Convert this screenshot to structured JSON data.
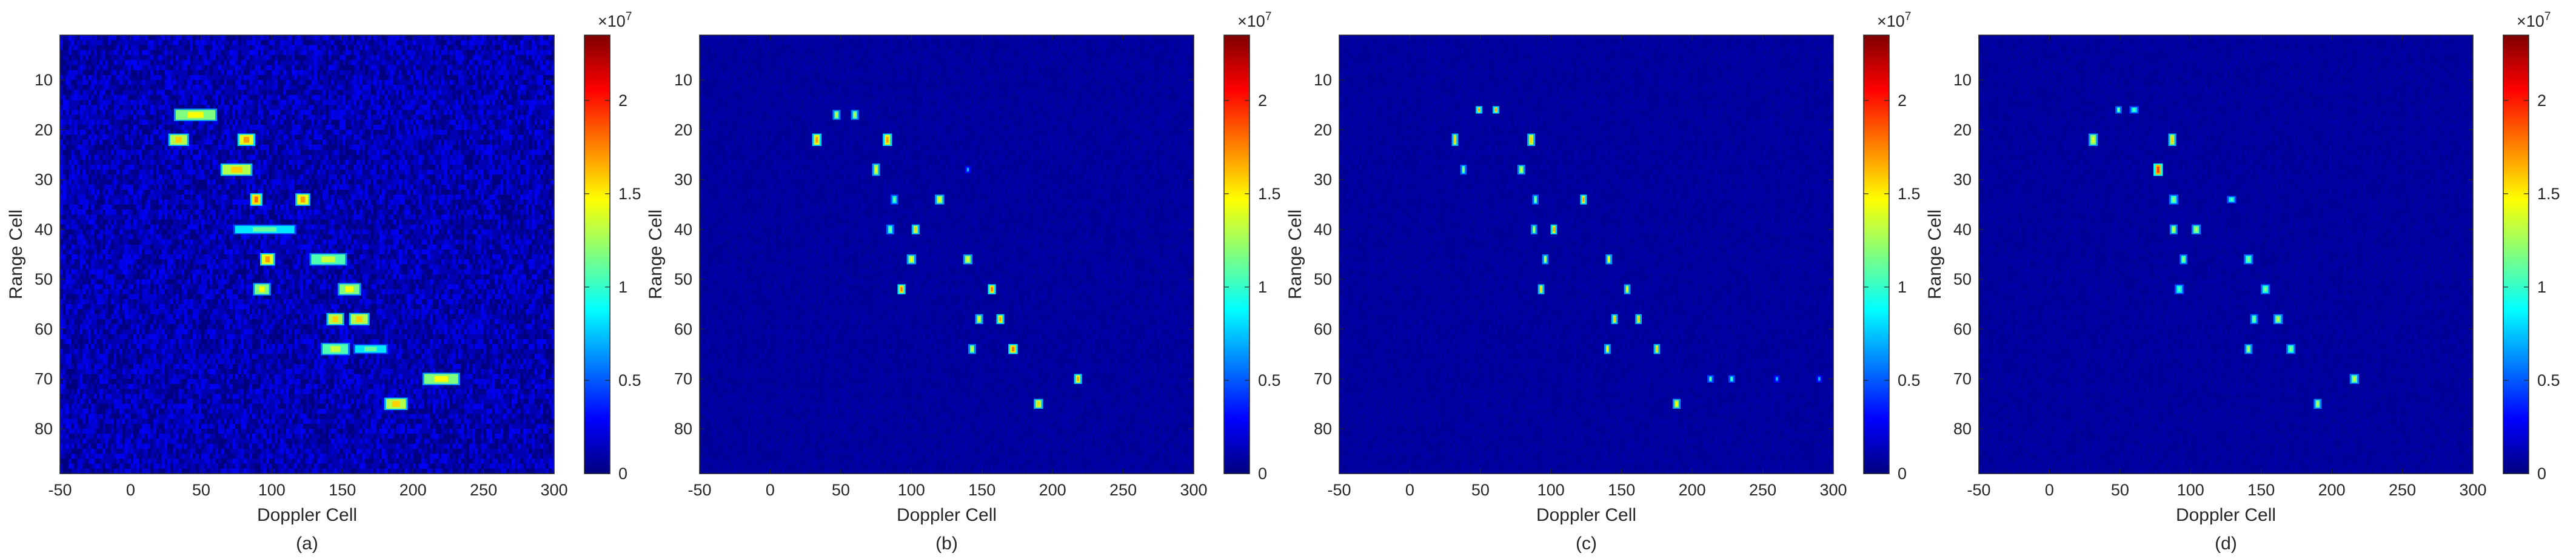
{
  "figure": {
    "colormap": "jet",
    "colors": {
      "background": "#00008F",
      "axis_color": "#262626",
      "jet_stops": [
        "#00007F",
        "#0000FF",
        "#007FFF",
        "#00FFFF",
        "#7FFF7F",
        "#FFFF00",
        "#FF7F00",
        "#FF0000",
        "#7F0000"
      ]
    }
  },
  "chart_data": [
    {
      "type": "heatmap",
      "caption": "(a)",
      "xlabel": "Doppler Cell",
      "ylabel": "Range Cell",
      "xlim": [
        -50,
        300
      ],
      "ylim": [
        89,
        1
      ],
      "y_reversed": true,
      "xticks": [
        -50,
        0,
        50,
        100,
        150,
        200,
        250,
        300
      ],
      "yticks": [
        10,
        20,
        30,
        40,
        50,
        60,
        70,
        80
      ],
      "colorbar": {
        "range": [
          0,
          23500000
        ],
        "ticks": [
          0,
          0.5,
          1,
          1.5,
          2
        ],
        "ticklabels": [
          "0",
          "0.5",
          "1",
          "1.5",
          "2"
        ],
        "multiplier": "×10",
        "exponent": "7"
      },
      "background_level": 0.05,
      "noise": 0.07,
      "blobs": [
        {
          "x": 46,
          "y": 17,
          "w": 28,
          "h": 2,
          "v": 0.5
        },
        {
          "x": 34,
          "y": 22,
          "w": 12,
          "h": 2,
          "v": 0.55
        },
        {
          "x": 82,
          "y": 22,
          "w": 10,
          "h": 2,
          "v": 0.6
        },
        {
          "x": 75,
          "y": 28,
          "w": 20,
          "h": 2,
          "v": 0.55
        },
        {
          "x": 89,
          "y": 34,
          "w": 6,
          "h": 2,
          "v": 0.65
        },
        {
          "x": 122,
          "y": 34,
          "w": 8,
          "h": 2,
          "v": 0.6
        },
        {
          "x": 95,
          "y": 40,
          "w": 42,
          "h": 1.5,
          "v": 0.35
        },
        {
          "x": 97,
          "y": 46,
          "w": 8,
          "h": 2,
          "v": 0.6
        },
        {
          "x": 140,
          "y": 46,
          "w": 24,
          "h": 2,
          "v": 0.45
        },
        {
          "x": 93,
          "y": 52,
          "w": 10,
          "h": 2,
          "v": 0.5
        },
        {
          "x": 155,
          "y": 52,
          "w": 14,
          "h": 2,
          "v": 0.5
        },
        {
          "x": 145,
          "y": 58,
          "w": 10,
          "h": 2,
          "v": 0.55
        },
        {
          "x": 162,
          "y": 58,
          "w": 12,
          "h": 2,
          "v": 0.55
        },
        {
          "x": 145,
          "y": 64,
          "w": 18,
          "h": 2,
          "v": 0.45
        },
        {
          "x": 170,
          "y": 64,
          "w": 22,
          "h": 1.5,
          "v": 0.35
        },
        {
          "x": 220,
          "y": 70,
          "w": 24,
          "h": 2,
          "v": 0.5
        },
        {
          "x": 188,
          "y": 75,
          "w": 14,
          "h": 2,
          "v": 0.55
        }
      ]
    },
    {
      "type": "heatmap",
      "caption": "(b)",
      "xlabel": "Doppler Cell",
      "ylabel": "Range Cell",
      "xlim": [
        -50,
        300
      ],
      "ylim": [
        89,
        1
      ],
      "y_reversed": true,
      "xticks": [
        -50,
        0,
        50,
        100,
        150,
        200,
        250,
        300
      ],
      "yticks": [
        10,
        20,
        30,
        40,
        50,
        60,
        70,
        80
      ],
      "colorbar": {
        "range": [
          0,
          23500000
        ],
        "ticks": [
          0,
          0.5,
          1,
          1.5,
          2
        ],
        "ticklabels": [
          "0",
          "0.5",
          "1",
          "1.5",
          "2"
        ],
        "multiplier": "×10",
        "exponent": "7"
      },
      "background_level": 0.03,
      "noise": 0.012,
      "blobs": [
        {
          "x": 47,
          "y": 17,
          "w": 3,
          "h": 1.5,
          "v": 0.45
        },
        {
          "x": 60,
          "y": 17,
          "w": 3,
          "h": 1.5,
          "v": 0.45
        },
        {
          "x": 33,
          "y": 22,
          "w": 4,
          "h": 2,
          "v": 0.6
        },
        {
          "x": 83,
          "y": 22,
          "w": 4,
          "h": 2,
          "v": 0.6
        },
        {
          "x": 75,
          "y": 28,
          "w": 3,
          "h": 2,
          "v": 0.5
        },
        {
          "x": 140,
          "y": 28,
          "w": 2,
          "h": 1,
          "v": 0.2
        },
        {
          "x": 88,
          "y": 34,
          "w": 3,
          "h": 1.5,
          "v": 0.35
        },
        {
          "x": 120,
          "y": 34,
          "w": 4,
          "h": 1.5,
          "v": 0.5
        },
        {
          "x": 85,
          "y": 40,
          "w": 3,
          "h": 1.5,
          "v": 0.4
        },
        {
          "x": 103,
          "y": 40,
          "w": 3,
          "h": 1.5,
          "v": 0.55
        },
        {
          "x": 100,
          "y": 46,
          "w": 4,
          "h": 1.5,
          "v": 0.5
        },
        {
          "x": 140,
          "y": 46,
          "w": 4,
          "h": 1.5,
          "v": 0.5
        },
        {
          "x": 93,
          "y": 52,
          "w": 3,
          "h": 1.5,
          "v": 0.65
        },
        {
          "x": 157,
          "y": 52,
          "w": 3,
          "h": 1.5,
          "v": 0.65
        },
        {
          "x": 148,
          "y": 58,
          "w": 3,
          "h": 1.5,
          "v": 0.5
        },
        {
          "x": 163,
          "y": 58,
          "w": 3,
          "h": 1.5,
          "v": 0.6
        },
        {
          "x": 143,
          "y": 64,
          "w": 3,
          "h": 1.5,
          "v": 0.45
        },
        {
          "x": 172,
          "y": 64,
          "w": 4,
          "h": 1.5,
          "v": 0.65
        },
        {
          "x": 218,
          "y": 70,
          "w": 3,
          "h": 1.5,
          "v": 0.6
        },
        {
          "x": 190,
          "y": 75,
          "w": 4,
          "h": 1.5,
          "v": 0.55
        }
      ]
    },
    {
      "type": "heatmap",
      "caption": "(c)",
      "xlabel": "Doppler Cell",
      "ylabel": "Range Cell",
      "xlim": [
        -50,
        300
      ],
      "ylim": [
        89,
        1
      ],
      "y_reversed": true,
      "xticks": [
        -50,
        0,
        50,
        100,
        150,
        200,
        250,
        300
      ],
      "yticks": [
        10,
        20,
        30,
        40,
        50,
        60,
        70,
        80
      ],
      "colorbar": {
        "range": [
          0,
          23500000
        ],
        "ticks": [
          0,
          0.5,
          1,
          1.5,
          2
        ],
        "ticklabels": [
          "0",
          "0.5",
          "1",
          "1.5",
          "2"
        ],
        "multiplier": "×10",
        "exponent": "7"
      },
      "background_level": 0.03,
      "noise": 0.01,
      "blobs": [
        {
          "x": 49,
          "y": 16,
          "w": 2,
          "h": 1,
          "v": 0.6
        },
        {
          "x": 61,
          "y": 16,
          "w": 2,
          "h": 1,
          "v": 0.6
        },
        {
          "x": 32,
          "y": 22,
          "w": 2,
          "h": 2,
          "v": 0.55
        },
        {
          "x": 86,
          "y": 22,
          "w": 3,
          "h": 2,
          "v": 0.55
        },
        {
          "x": 38,
          "y": 28,
          "w": 2,
          "h": 1.5,
          "v": 0.4
        },
        {
          "x": 79,
          "y": 28,
          "w": 3,
          "h": 1.5,
          "v": 0.45
        },
        {
          "x": 89,
          "y": 34,
          "w": 2,
          "h": 1.5,
          "v": 0.4
        },
        {
          "x": 123,
          "y": 34,
          "w": 2,
          "h": 1.5,
          "v": 0.6
        },
        {
          "x": 88,
          "y": 40,
          "w": 2,
          "h": 1.5,
          "v": 0.45
        },
        {
          "x": 102,
          "y": 40,
          "w": 2,
          "h": 1.5,
          "v": 0.6
        },
        {
          "x": 96,
          "y": 46,
          "w": 2,
          "h": 1.5,
          "v": 0.45
        },
        {
          "x": 141,
          "y": 46,
          "w": 2,
          "h": 1.5,
          "v": 0.5
        },
        {
          "x": 93,
          "y": 52,
          "w": 2,
          "h": 1.5,
          "v": 0.55
        },
        {
          "x": 154,
          "y": 52,
          "w": 2,
          "h": 1.5,
          "v": 0.5
        },
        {
          "x": 145,
          "y": 58,
          "w": 2,
          "h": 1.5,
          "v": 0.55
        },
        {
          "x": 162,
          "y": 58,
          "w": 2,
          "h": 1.5,
          "v": 0.55
        },
        {
          "x": 140,
          "y": 64,
          "w": 2,
          "h": 1.5,
          "v": 0.5
        },
        {
          "x": 175,
          "y": 64,
          "w": 2,
          "h": 1.5,
          "v": 0.55
        },
        {
          "x": 213,
          "y": 70,
          "w": 2,
          "h": 1,
          "v": 0.35
        },
        {
          "x": 228,
          "y": 70,
          "w": 2,
          "h": 1,
          "v": 0.35
        },
        {
          "x": 260,
          "y": 70,
          "w": 2,
          "h": 1,
          "v": 0.2
        },
        {
          "x": 290,
          "y": 70,
          "w": 2,
          "h": 1,
          "v": 0.2
        },
        {
          "x": 189,
          "y": 75,
          "w": 3,
          "h": 1.5,
          "v": 0.5
        }
      ]
    },
    {
      "type": "heatmap",
      "caption": "(d)",
      "xlabel": "Doppler Cell",
      "ylabel": "Range Cell",
      "xlim": [
        -50,
        300
      ],
      "ylim": [
        89,
        1
      ],
      "y_reversed": true,
      "xticks": [
        -50,
        0,
        50,
        100,
        150,
        200,
        250,
        300
      ],
      "yticks": [
        10,
        20,
        30,
        40,
        50,
        60,
        70,
        80
      ],
      "colorbar": {
        "range": [
          0,
          23500000
        ],
        "ticks": [
          0,
          0.5,
          1,
          1.5,
          2
        ],
        "ticklabels": [
          "0",
          "0.5",
          "1",
          "1.5",
          "2"
        ],
        "multiplier": "×10",
        "exponent": "7"
      },
      "background_level": 0.03,
      "noise": 0.01,
      "blobs": [
        {
          "x": 49,
          "y": 16,
          "w": 2,
          "h": 1,
          "v": 0.4
        },
        {
          "x": 60,
          "y": 16,
          "w": 4,
          "h": 1,
          "v": 0.35
        },
        {
          "x": 31,
          "y": 22,
          "w": 4,
          "h": 2,
          "v": 0.5
        },
        {
          "x": 87,
          "y": 22,
          "w": 3,
          "h": 2,
          "v": 0.55
        },
        {
          "x": 77,
          "y": 28,
          "w": 4,
          "h": 2,
          "v": 0.7
        },
        {
          "x": 88,
          "y": 34,
          "w": 4,
          "h": 1.5,
          "v": 0.4
        },
        {
          "x": 129,
          "y": 34,
          "w": 4,
          "h": 1,
          "v": 0.35
        },
        {
          "x": 88,
          "y": 40,
          "w": 3,
          "h": 1.5,
          "v": 0.45
        },
        {
          "x": 104,
          "y": 40,
          "w": 4,
          "h": 1.5,
          "v": 0.45
        },
        {
          "x": 95,
          "y": 46,
          "w": 3,
          "h": 1.5,
          "v": 0.4
        },
        {
          "x": 141,
          "y": 46,
          "w": 4,
          "h": 1.5,
          "v": 0.4
        },
        {
          "x": 92,
          "y": 52,
          "w": 4,
          "h": 1.5,
          "v": 0.35
        },
        {
          "x": 153,
          "y": 52,
          "w": 4,
          "h": 1.5,
          "v": 0.4
        },
        {
          "x": 145,
          "y": 58,
          "w": 3,
          "h": 1.5,
          "v": 0.4
        },
        {
          "x": 162,
          "y": 58,
          "w": 4,
          "h": 1.5,
          "v": 0.45
        },
        {
          "x": 141,
          "y": 64,
          "w": 3,
          "h": 1.5,
          "v": 0.45
        },
        {
          "x": 171,
          "y": 64,
          "w": 4,
          "h": 1.5,
          "v": 0.4
        },
        {
          "x": 216,
          "y": 70,
          "w": 4,
          "h": 1.5,
          "v": 0.45
        },
        {
          "x": 190,
          "y": 75,
          "w": 3,
          "h": 1.5,
          "v": 0.45
        }
      ]
    }
  ]
}
